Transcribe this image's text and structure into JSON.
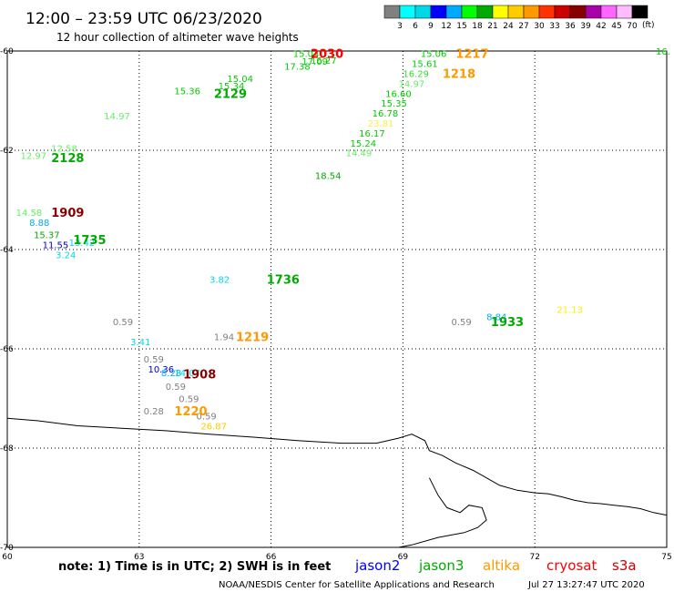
{
  "header": {
    "title": "12:00 – 23:59 UTC 06/23/2020",
    "subtitle": "12 hour collection of altimeter wave heights"
  },
  "legend": {
    "colors": [
      "#808080",
      "#00ffff",
      "#00d8e8",
      "#0000ff",
      "#00aaff",
      "#00ff00",
      "#00aa00",
      "#ffff00",
      "#ffcc00",
      "#ff9900",
      "#ff3300",
      "#cc0000",
      "#880000",
      "#aa00aa",
      "#ff66ff",
      "#ffbbff",
      "#000000"
    ],
    "labels": [
      "3",
      "6",
      "9",
      "12",
      "15",
      "18",
      "21",
      "24",
      "27",
      "30",
      "33",
      "36",
      "39",
      "42",
      "45",
      "70"
    ],
    "unit": "(ft)"
  },
  "chart_data": {
    "type": "scatter",
    "xlim": [
      60,
      75
    ],
    "ylim": [
      -70,
      -60
    ],
    "x_ticks": [
      "60",
      "63",
      "66",
      "69",
      "72",
      "75"
    ],
    "y_ticks": [
      "-60",
      "-62",
      "-64",
      "-66",
      "-68",
      "-70"
    ],
    "grid": true,
    "observations": [
      {
        "t": "15.04",
        "lon": 66.5,
        "lat": -60.05,
        "c": "#00cc00"
      },
      {
        "t": "17.09",
        "lon": 66.7,
        "lat": -60.2,
        "c": "#00cc00"
      },
      {
        "t": "16.27",
        "lon": 66.9,
        "lat": -60.18,
        "c": "#00cc00"
      },
      {
        "t": "17.38",
        "lon": 66.3,
        "lat": -60.3,
        "c": "#00cc00"
      },
      {
        "t": "15.04",
        "lon": 65.0,
        "lat": -60.55,
        "c": "#00cc00"
      },
      {
        "t": "15.34",
        "lon": 64.8,
        "lat": -60.7,
        "c": "#00cc00"
      },
      {
        "t": "15.36",
        "lon": 63.8,
        "lat": -60.8,
        "c": "#00cc00"
      },
      {
        "t": "14.97",
        "lon": 62.2,
        "lat": -61.3,
        "c": "#66ee66"
      },
      {
        "t": "12.97",
        "lon": 60.3,
        "lat": -62.1,
        "c": "#66ee66"
      },
      {
        "t": "12.58",
        "lon": 61.0,
        "lat": -61.95,
        "c": "#66ee66"
      },
      {
        "t": "15.06",
        "lon": 69.4,
        "lat": -60.05,
        "c": "#00cc00"
      },
      {
        "t": "15.61",
        "lon": 69.2,
        "lat": -60.25,
        "c": "#00cc00"
      },
      {
        "t": "16.29",
        "lon": 69.0,
        "lat": -60.45,
        "c": "#33dd33"
      },
      {
        "t": "14.97",
        "lon": 68.9,
        "lat": -60.65,
        "c": "#66ee66"
      },
      {
        "t": "16.60",
        "lon": 68.6,
        "lat": -60.85,
        "c": "#00cc00"
      },
      {
        "t": "15.35",
        "lon": 68.5,
        "lat": -61.05,
        "c": "#00cc00"
      },
      {
        "t": "16.78",
        "lon": 68.3,
        "lat": -61.25,
        "c": "#00cc00"
      },
      {
        "t": "23.81",
        "lon": 68.2,
        "lat": -61.45,
        "c": "#ffee44"
      },
      {
        "t": "16.17",
        "lon": 68.0,
        "lat": -61.65,
        "c": "#00cc00"
      },
      {
        "t": "15.24",
        "lon": 67.8,
        "lat": -61.85,
        "c": "#00cc00"
      },
      {
        "t": "14.49",
        "lon": 67.7,
        "lat": -62.05,
        "c": "#66ee66"
      },
      {
        "t": "18.54",
        "lon": 67.0,
        "lat": -62.5,
        "c": "#00aa00"
      },
      {
        "t": "14.58",
        "lon": 60.2,
        "lat": -63.25,
        "c": "#66ee66"
      },
      {
        "t": "8.88",
        "lon": 60.5,
        "lat": -63.45,
        "c": "#00aaff"
      },
      {
        "t": "15.37",
        "lon": 60.6,
        "lat": -63.7,
        "c": "#00aa00"
      },
      {
        "t": "13.42",
        "lon": 61.4,
        "lat": -63.85,
        "c": "#00d8e8"
      },
      {
        "t": "11.55",
        "lon": 60.8,
        "lat": -63.9,
        "c": "#0000cc"
      },
      {
        "t": "3.24",
        "lon": 61.1,
        "lat": -64.1,
        "c": "#00d8e8"
      },
      {
        "t": "3.82",
        "lon": 64.6,
        "lat": -64.6,
        "c": "#00d8e8"
      },
      {
        "t": "0.59",
        "lon": 62.4,
        "lat": -65.45,
        "c": "#808080"
      },
      {
        "t": "3.41",
        "lon": 62.8,
        "lat": -65.85,
        "c": "#00d8e8"
      },
      {
        "t": "1.94",
        "lon": 64.7,
        "lat": -65.75,
        "c": "#808080"
      },
      {
        "t": "0.59",
        "lon": 63.1,
        "lat": -66.2,
        "c": "#808080"
      },
      {
        "t": "10.36",
        "lon": 63.2,
        "lat": -66.4,
        "c": "#0000cc"
      },
      {
        "t": "8.28",
        "lon": 63.5,
        "lat": -66.48,
        "c": "#00aaff"
      },
      {
        "t": "14.07",
        "lon": 63.8,
        "lat": -66.48,
        "c": "#00d8e8"
      },
      {
        "t": "0.59",
        "lon": 63.6,
        "lat": -66.75,
        "c": "#808080"
      },
      {
        "t": "0.59",
        "lon": 63.9,
        "lat": -67.0,
        "c": "#808080"
      },
      {
        "t": "0.28",
        "lon": 63.1,
        "lat": -67.25,
        "c": "#808080"
      },
      {
        "t": "0.59",
        "lon": 64.3,
        "lat": -67.35,
        "c": "#808080"
      },
      {
        "t": "26.87",
        "lon": 64.4,
        "lat": -67.55,
        "c": "#ffcc00"
      },
      {
        "t": "0.59",
        "lon": 70.1,
        "lat": -65.45,
        "c": "#808080"
      },
      {
        "t": "8.84",
        "lon": 70.9,
        "lat": -65.35,
        "c": "#00aaff"
      },
      {
        "t": "21.13",
        "lon": 72.5,
        "lat": -65.2,
        "c": "#ffee00"
      },
      {
        "t": "16.",
        "lon": 74.8,
        "lat": -60.0,
        "c": "#00cc00"
      }
    ],
    "time_labels": [
      {
        "t": "2030",
        "lon": 66.9,
        "lat": -60.05,
        "c": "#ff0000"
      },
      {
        "t": "2129",
        "lon": 64.7,
        "lat": -60.85,
        "c": "#00aa00"
      },
      {
        "t": "2128",
        "lon": 61.0,
        "lat": -62.15,
        "c": "#00aa00"
      },
      {
        "t": "1217",
        "lon": 70.2,
        "lat": -60.05,
        "c": "#ff9900"
      },
      {
        "t": "1218",
        "lon": 69.9,
        "lat": -60.45,
        "c": "#ff9900"
      },
      {
        "t": "1909",
        "lon": 61.0,
        "lat": -63.25,
        "c": "#880000"
      },
      {
        "t": "1735",
        "lon": 61.5,
        "lat": -63.8,
        "c": "#00aa00"
      },
      {
        "t": "1736",
        "lon": 65.9,
        "lat": -64.6,
        "c": "#00aa00"
      },
      {
        "t": "1219",
        "lon": 65.2,
        "lat": -65.75,
        "c": "#ff9900"
      },
      {
        "t": "1908",
        "lon": 64.0,
        "lat": -66.5,
        "c": "#880000"
      },
      {
        "t": "1220",
        "lon": 63.8,
        "lat": -67.25,
        "c": "#ff9900"
      },
      {
        "t": "1933",
        "lon": 71.0,
        "lat": -65.45,
        "c": "#00aa00"
      }
    ],
    "coastline": [
      [
        60,
        -67.4
      ],
      [
        60.7,
        -67.45
      ],
      [
        61.6,
        -67.55
      ],
      [
        62.6,
        -67.6
      ],
      [
        63.6,
        -67.65
      ],
      [
        64.6,
        -67.72
      ],
      [
        65.6,
        -67.78
      ],
      [
        66.6,
        -67.85
      ],
      [
        67.6,
        -67.9
      ],
      [
        68.4,
        -67.9
      ],
      [
        68.9,
        -67.8
      ],
      [
        69.2,
        -67.72
      ],
      [
        69.5,
        -67.85
      ],
      [
        69.6,
        -68.05
      ],
      [
        69.9,
        -68.15
      ],
      [
        70.2,
        -68.3
      ],
      [
        70.6,
        -68.45
      ],
      [
        70.9,
        -68.6
      ],
      [
        71.2,
        -68.75
      ],
      [
        71.6,
        -68.85
      ],
      [
        72.0,
        -68.9
      ],
      [
        72.3,
        -68.92
      ],
      [
        72.6,
        -68.98
      ],
      [
        72.9,
        -69.05
      ],
      [
        73.2,
        -69.1
      ],
      [
        73.5,
        -69.12
      ],
      [
        73.8,
        -69.15
      ],
      [
        74.1,
        -69.18
      ],
      [
        74.4,
        -69.22
      ],
      [
        74.7,
        -69.3
      ],
      [
        75,
        -69.35
      ]
    ],
    "coastline2": [
      [
        69.6,
        -68.6
      ],
      [
        69.8,
        -68.95
      ],
      [
        70.0,
        -69.2
      ],
      [
        70.3,
        -69.3
      ],
      [
        70.5,
        -69.15
      ],
      [
        70.8,
        -69.2
      ],
      [
        70.9,
        -69.45
      ],
      [
        70.7,
        -69.6
      ],
      [
        70.4,
        -69.7
      ],
      [
        69.8,
        -69.8
      ],
      [
        69.2,
        -69.95
      ],
      [
        68.9,
        -70.0
      ]
    ]
  },
  "footer": {
    "note": "note:  1) Time is in UTC;  2) SWH is in feet",
    "satellites": [
      {
        "name": "jason2",
        "color": "#0000ff"
      },
      {
        "name": "jason3",
        "color": "#00aa00"
      },
      {
        "name": "altika",
        "color": "#ff9900"
      },
      {
        "name": "cryosat",
        "color": "#ff0000"
      },
      {
        "name": "s3a",
        "color": "#cc0000"
      }
    ],
    "credit": "NOAA/NESDIS Center for Satellite Applications and Research",
    "timestamp": "Jul 27 13:27:47 UTC 2020"
  }
}
